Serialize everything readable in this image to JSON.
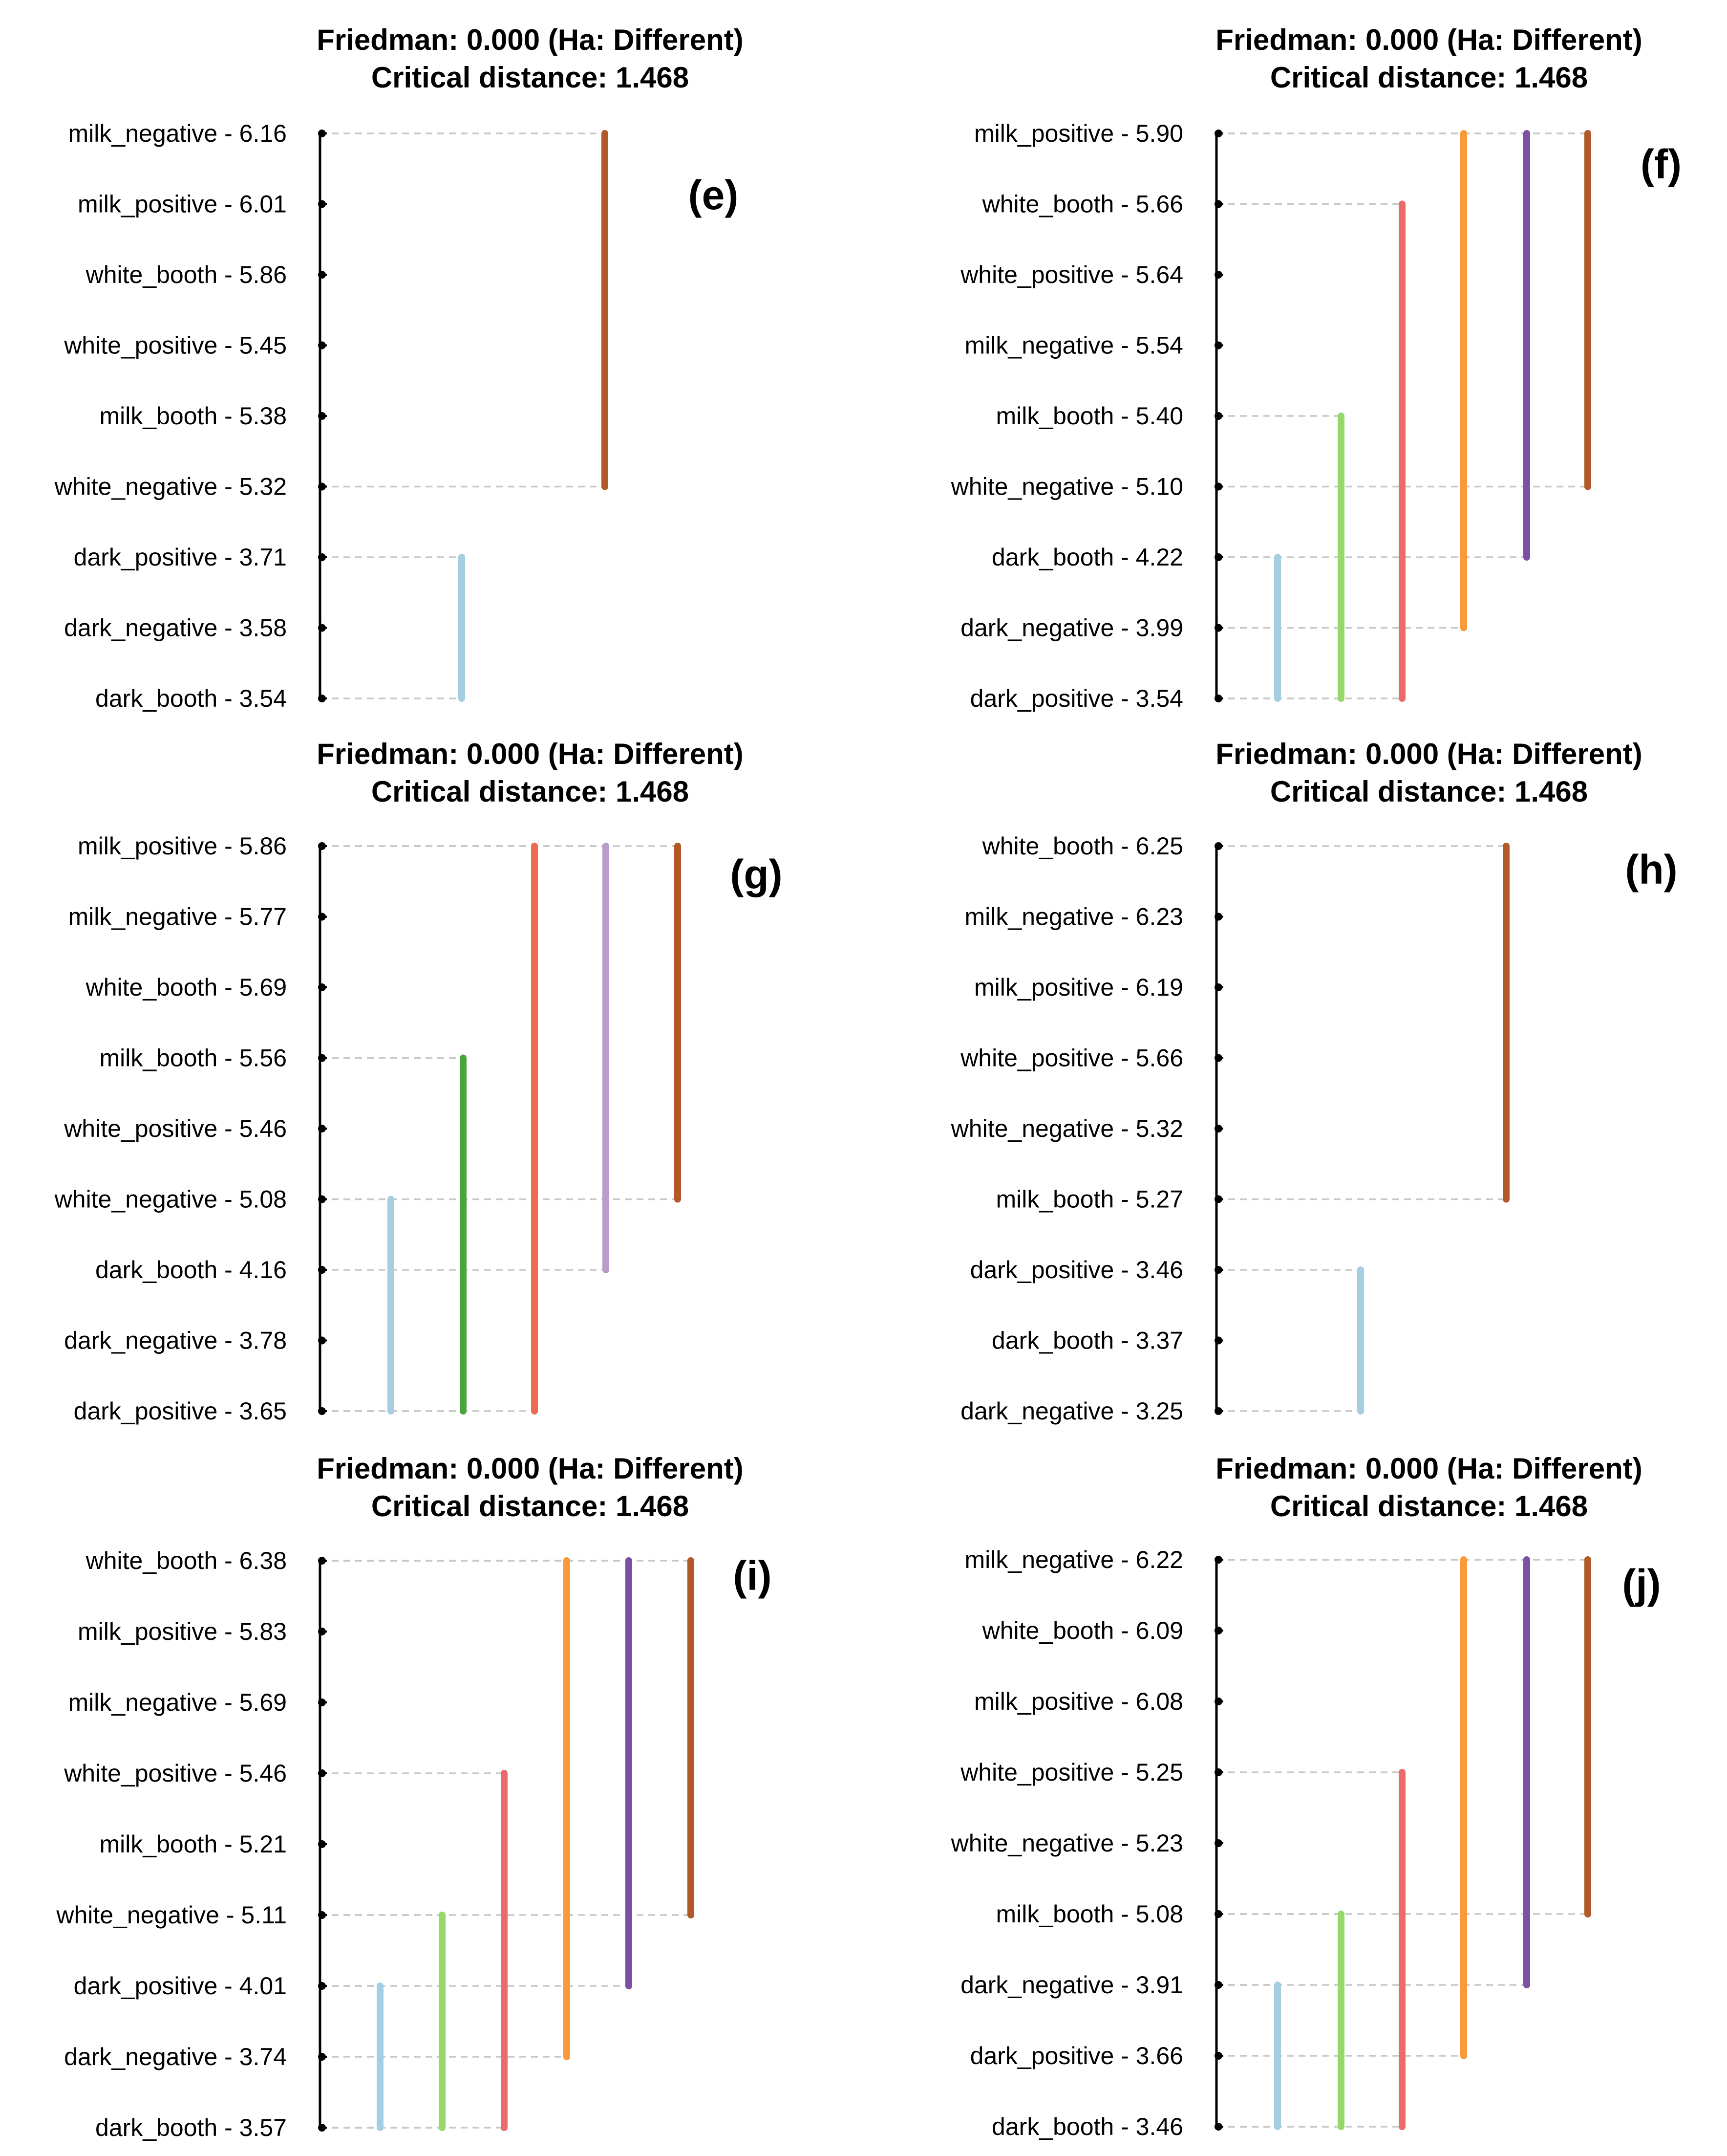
{
  "chart_data": [
    {
      "type": "critical-difference",
      "panel_label": "(e)",
      "title_lines": [
        "Friedman: 0.000 (Ha: Different)",
        "Critical distance: 1.468"
      ],
      "critical_distance": 1.468,
      "items": [
        {
          "name": "milk_negative",
          "rank": "6.16",
          "label": "milk_negative - 6.16"
        },
        {
          "name": "milk_positive",
          "rank": "6.01",
          "label": "milk_positive - 6.01"
        },
        {
          "name": "white_booth",
          "rank": "5.86",
          "label": "white_booth - 5.86"
        },
        {
          "name": "white_positive",
          "rank": "5.45",
          "label": "white_positive - 5.45"
        },
        {
          "name": "milk_booth",
          "rank": "5.38",
          "label": "milk_booth - 5.38"
        },
        {
          "name": "white_negative",
          "rank": "5.32",
          "label": "white_negative - 5.32"
        },
        {
          "name": "dark_positive",
          "rank": "3.71",
          "label": "dark_positive - 3.71"
        },
        {
          "name": "dark_negative",
          "rank": "3.58",
          "label": "dark_negative - 3.58"
        },
        {
          "name": "dark_booth",
          "rank": "3.54",
          "label": "dark_booth - 3.54"
        }
      ],
      "groups": [
        {
          "from": 6,
          "to": 8,
          "color": "#a6cee3"
        },
        {
          "from": 0,
          "to": 5,
          "color": "#b15928"
        }
      ]
    },
    {
      "type": "critical-difference",
      "panel_label": "(f)",
      "title_lines": [
        "Friedman: 0.000 (Ha: Different)",
        "Critical distance: 1.468"
      ],
      "critical_distance": 1.468,
      "items": [
        {
          "name": "milk_positive",
          "rank": "5.90",
          "label": "milk_positive - 5.90"
        },
        {
          "name": "white_booth",
          "rank": "5.66",
          "label": "white_booth - 5.66"
        },
        {
          "name": "white_positive",
          "rank": "5.64",
          "label": "white_positive - 5.64"
        },
        {
          "name": "milk_negative",
          "rank": "5.54",
          "label": "milk_negative - 5.54"
        },
        {
          "name": "milk_booth",
          "rank": "5.40",
          "label": "milk_booth - 5.40"
        },
        {
          "name": "white_negative",
          "rank": "5.10",
          "label": "white_negative - 5.10"
        },
        {
          "name": "dark_booth",
          "rank": "4.22",
          "label": "dark_booth - 4.22"
        },
        {
          "name": "dark_negative",
          "rank": "3.99",
          "label": "dark_negative - 3.99"
        },
        {
          "name": "dark_positive",
          "rank": "3.54",
          "label": "dark_positive - 3.54"
        }
      ],
      "groups": [
        {
          "from": 6,
          "to": 8,
          "color": "#a6cee3"
        },
        {
          "from": 4,
          "to": 8,
          "color": "#97d86a"
        },
        {
          "from": 1,
          "to": 8,
          "color": "#eb6b6b"
        },
        {
          "from": 0,
          "to": 7,
          "color": "#f79a37"
        },
        {
          "from": 0,
          "to": 6,
          "color": "#7f4fa3"
        },
        {
          "from": 0,
          "to": 5,
          "color": "#b15928"
        }
      ]
    },
    {
      "type": "critical-difference",
      "panel_label": "(g)",
      "title_lines": [
        "Friedman: 0.000 (Ha: Different)",
        "Critical distance: 1.468"
      ],
      "critical_distance": 1.468,
      "items": [
        {
          "name": "milk_positive",
          "rank": "5.86",
          "label": "milk_positive - 5.86"
        },
        {
          "name": "milk_negative",
          "rank": "5.77",
          "label": "milk_negative - 5.77"
        },
        {
          "name": "white_booth",
          "rank": "5.69",
          "label": "white_booth - 5.69"
        },
        {
          "name": "milk_booth",
          "rank": "5.56",
          "label": "milk_booth - 5.56"
        },
        {
          "name": "white_positive",
          "rank": "5.46",
          "label": "white_positive - 5.46"
        },
        {
          "name": "white_negative",
          "rank": "5.08",
          "label": "white_negative - 5.08"
        },
        {
          "name": "dark_booth",
          "rank": "4.16",
          "label": "dark_booth - 4.16"
        },
        {
          "name": "dark_negative",
          "rank": "3.78",
          "label": "dark_negative - 3.78"
        },
        {
          "name": "dark_positive",
          "rank": "3.65",
          "label": "dark_positive - 3.65"
        }
      ],
      "groups": [
        {
          "from": 5,
          "to": 8,
          "color": "#a6cee3"
        },
        {
          "from": 3,
          "to": 8,
          "color": "#4ca53c"
        },
        {
          "from": 0,
          "to": 8,
          "color": "#ee6a50"
        },
        {
          "from": 0,
          "to": 6,
          "color": "#b89cc9"
        },
        {
          "from": 0,
          "to": 5,
          "color": "#b15928"
        }
      ]
    },
    {
      "type": "critical-difference",
      "panel_label": "(h)",
      "title_lines": [
        "Friedman: 0.000 (Ha: Different)",
        "Critical distance: 1.468"
      ],
      "critical_distance": 1.468,
      "items": [
        {
          "name": "white_booth",
          "rank": "6.25",
          "label": "white_booth - 6.25"
        },
        {
          "name": "milk_negative",
          "rank": "6.23",
          "label": "milk_negative - 6.23"
        },
        {
          "name": "milk_positive",
          "rank": "6.19",
          "label": "milk_positive - 6.19"
        },
        {
          "name": "white_positive",
          "rank": "5.66",
          "label": "white_positive - 5.66"
        },
        {
          "name": "white_negative",
          "rank": "5.32",
          "label": "white_negative - 5.32"
        },
        {
          "name": "milk_booth",
          "rank": "5.27",
          "label": "milk_booth - 5.27"
        },
        {
          "name": "dark_positive",
          "rank": "3.46",
          "label": "dark_positive - 3.46"
        },
        {
          "name": "dark_booth",
          "rank": "3.37",
          "label": "dark_booth - 3.37"
        },
        {
          "name": "dark_negative",
          "rank": "3.25",
          "label": "dark_negative - 3.25"
        }
      ],
      "groups": [
        {
          "from": 6,
          "to": 8,
          "color": "#a6cee3"
        },
        {
          "from": 0,
          "to": 5,
          "color": "#b15928"
        }
      ]
    },
    {
      "type": "critical-difference",
      "panel_label": "(i)",
      "title_lines": [
        "Friedman: 0.000 (Ha: Different)",
        "Critical distance: 1.468"
      ],
      "critical_distance": 1.468,
      "items": [
        {
          "name": "white_booth",
          "rank": "6.38",
          "label": "white_booth - 6.38"
        },
        {
          "name": "milk_positive",
          "rank": "5.83",
          "label": "milk_positive - 5.83"
        },
        {
          "name": "milk_negative",
          "rank": "5.69",
          "label": "milk_negative - 5.69"
        },
        {
          "name": "white_positive",
          "rank": "5.46",
          "label": "white_positive - 5.46"
        },
        {
          "name": "milk_booth",
          "rank": "5.21",
          "label": "milk_booth - 5.21"
        },
        {
          "name": "white_negative",
          "rank": "5.11",
          "label": "white_negative - 5.11"
        },
        {
          "name": "dark_positive",
          "rank": "4.01",
          "label": "dark_positive - 4.01"
        },
        {
          "name": "dark_negative",
          "rank": "3.74",
          "label": "dark_negative - 3.74"
        },
        {
          "name": "dark_booth",
          "rank": "3.57",
          "label": "dark_booth - 3.57"
        }
      ],
      "groups": [
        {
          "from": 6,
          "to": 8,
          "color": "#a6cee3"
        },
        {
          "from": 5,
          "to": 8,
          "color": "#97d86a"
        },
        {
          "from": 3,
          "to": 8,
          "color": "#eb6b6b"
        },
        {
          "from": 0,
          "to": 7,
          "color": "#f79a37"
        },
        {
          "from": 0,
          "to": 6,
          "color": "#7f4fa3"
        },
        {
          "from": 0,
          "to": 5,
          "color": "#b15928"
        }
      ]
    },
    {
      "type": "critical-difference",
      "panel_label": "(j)",
      "title_lines": [
        "Friedman: 0.000 (Ha: Different)",
        "Critical distance: 1.468"
      ],
      "critical_distance": 1.468,
      "items": [
        {
          "name": "milk_negative",
          "rank": "6.22",
          "label": "milk_negative - 6.22"
        },
        {
          "name": "white_booth",
          "rank": "6.09",
          "label": "white_booth - 6.09"
        },
        {
          "name": "milk_positive",
          "rank": "6.08",
          "label": "milk_positive - 6.08"
        },
        {
          "name": "white_positive",
          "rank": "5.25",
          "label": "white_positive - 5.25"
        },
        {
          "name": "white_negative",
          "rank": "5.23",
          "label": "white_negative - 5.23"
        },
        {
          "name": "milk_booth",
          "rank": "5.08",
          "label": "milk_booth - 5.08"
        },
        {
          "name": "dark_negative",
          "rank": "3.91",
          "label": "dark_negative - 3.91"
        },
        {
          "name": "dark_positive",
          "rank": "3.66",
          "label": "dark_positive - 3.66"
        },
        {
          "name": "dark_booth",
          "rank": "3.46",
          "label": "dark_booth - 3.46"
        }
      ],
      "groups": [
        {
          "from": 6,
          "to": 8,
          "color": "#a6cee3"
        },
        {
          "from": 5,
          "to": 8,
          "color": "#97d86a"
        },
        {
          "from": 3,
          "to": 8,
          "color": "#eb6b6b"
        },
        {
          "from": 0,
          "to": 7,
          "color": "#f79a37"
        },
        {
          "from": 0,
          "to": 6,
          "color": "#7f4fa3"
        },
        {
          "from": 0,
          "to": 5,
          "color": "#b15928"
        }
      ]
    }
  ]
}
